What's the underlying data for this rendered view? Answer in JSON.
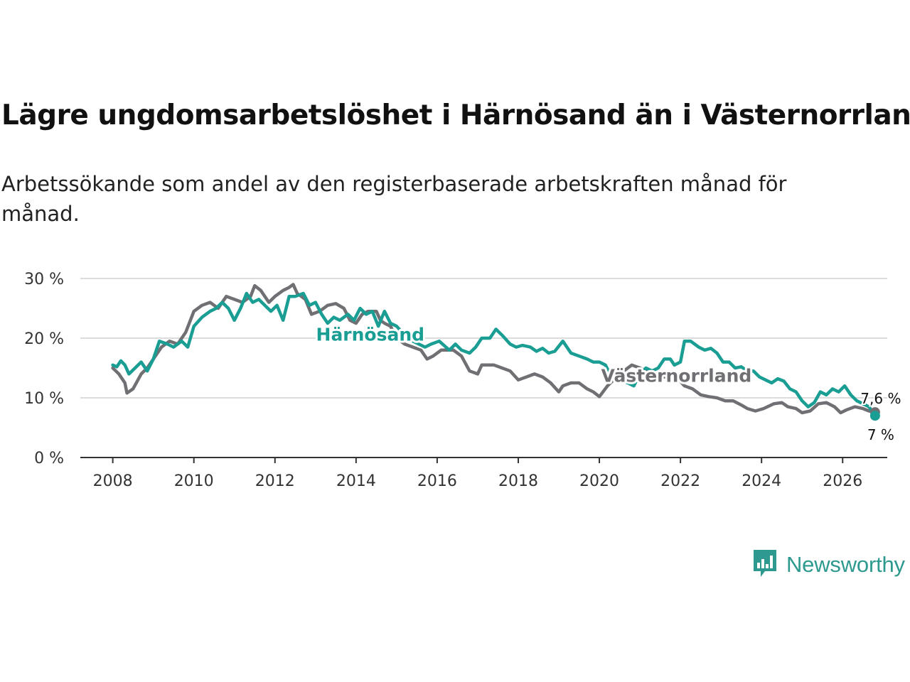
{
  "chart_data": {
    "type": "line",
    "title": "Lägre ungdomsarbetslöshet i Härnösand än i Västernorrland",
    "subtitle": "Arbetssökande som andel av den registerbaserade arbetskraften månad för månad.",
    "y_ticks": [
      "30 %",
      "20 %",
      "10 %",
      "0 %"
    ],
    "y_tick_values": [
      30,
      20,
      10,
      0
    ],
    "x_ticks": [
      "2008",
      "2010",
      "2012",
      "2014",
      "2016",
      "2018",
      "2020",
      "2022",
      "2024",
      "2026"
    ],
    "x_tick_values": [
      2008,
      2010,
      2012,
      2014,
      2016,
      2018,
      2020,
      2022,
      2024,
      2026
    ],
    "xlim": [
      2007.2,
      2027.1
    ],
    "ylim": [
      0,
      30
    ],
    "series": [
      {
        "name": "Västernorrland",
        "color": "#707074",
        "end_label": "7,6 %",
        "points": [
          [
            2008.0,
            15.0
          ],
          [
            2008.15,
            14.0
          ],
          [
            2008.3,
            12.5
          ],
          [
            2008.35,
            10.8
          ],
          [
            2008.5,
            11.5
          ],
          [
            2008.7,
            14.0
          ],
          [
            2008.85,
            15.0
          ],
          [
            2009.0,
            16.5
          ],
          [
            2009.2,
            18.5
          ],
          [
            2009.4,
            19.5
          ],
          [
            2009.6,
            19.0
          ],
          [
            2009.8,
            21.0
          ],
          [
            2010.0,
            24.5
          ],
          [
            2010.2,
            25.5
          ],
          [
            2010.4,
            26.0
          ],
          [
            2010.6,
            25.0
          ],
          [
            2010.8,
            27.0
          ],
          [
            2011.0,
            26.5
          ],
          [
            2011.2,
            26.0
          ],
          [
            2011.4,
            27.0
          ],
          [
            2011.5,
            28.8
          ],
          [
            2011.65,
            28.0
          ],
          [
            2011.85,
            26.0
          ],
          [
            2012.0,
            27.0
          ],
          [
            2012.2,
            28.0
          ],
          [
            2012.35,
            28.5
          ],
          [
            2012.45,
            29.0
          ],
          [
            2012.55,
            27.5
          ],
          [
            2012.75,
            26.5
          ],
          [
            2012.9,
            24.0
          ],
          [
            2013.1,
            24.5
          ],
          [
            2013.3,
            25.5
          ],
          [
            2013.5,
            25.8
          ],
          [
            2013.7,
            25.0
          ],
          [
            2013.85,
            23.0
          ],
          [
            2014.0,
            22.5
          ],
          [
            2014.15,
            24.0
          ],
          [
            2014.3,
            24.5
          ],
          [
            2014.5,
            24.5
          ],
          [
            2014.6,
            23.0
          ],
          [
            2014.7,
            22.5
          ],
          [
            2014.85,
            22.0
          ],
          [
            2015.0,
            20.0
          ],
          [
            2015.2,
            19.0
          ],
          [
            2015.4,
            18.5
          ],
          [
            2015.6,
            18.0
          ],
          [
            2015.75,
            16.5
          ],
          [
            2015.9,
            17.0
          ],
          [
            2016.1,
            18.0
          ],
          [
            2016.4,
            18.0
          ],
          [
            2016.6,
            17.0
          ],
          [
            2016.8,
            14.5
          ],
          [
            2017.0,
            14.0
          ],
          [
            2017.1,
            15.5
          ],
          [
            2017.4,
            15.5
          ],
          [
            2017.6,
            15.0
          ],
          [
            2017.8,
            14.5
          ],
          [
            2018.0,
            13.0
          ],
          [
            2018.2,
            13.5
          ],
          [
            2018.4,
            14.0
          ],
          [
            2018.6,
            13.5
          ],
          [
            2018.8,
            12.5
          ],
          [
            2019.0,
            11.0
          ],
          [
            2019.1,
            12.0
          ],
          [
            2019.3,
            12.5
          ],
          [
            2019.5,
            12.5
          ],
          [
            2019.7,
            11.5
          ],
          [
            2019.85,
            11.0
          ],
          [
            2020.0,
            10.2
          ],
          [
            2020.2,
            12.0
          ],
          [
            2020.5,
            14.0
          ],
          [
            2020.8,
            15.5
          ],
          [
            2021.0,
            15.0
          ],
          [
            2021.3,
            14.0
          ],
          [
            2021.6,
            13.5
          ],
          [
            2021.9,
            13.5
          ],
          [
            2022.1,
            12.0
          ],
          [
            2022.3,
            11.5
          ],
          [
            2022.5,
            10.5
          ],
          [
            2022.7,
            10.2
          ],
          [
            2022.9,
            10.0
          ],
          [
            2023.1,
            9.5
          ],
          [
            2023.3,
            9.5
          ],
          [
            2023.5,
            8.8
          ],
          [
            2023.65,
            8.2
          ],
          [
            2023.85,
            7.8
          ],
          [
            2024.05,
            8.2
          ],
          [
            2024.3,
            9.0
          ],
          [
            2024.5,
            9.2
          ],
          [
            2024.65,
            8.5
          ],
          [
            2024.85,
            8.2
          ],
          [
            2025.0,
            7.5
          ],
          [
            2025.2,
            7.8
          ],
          [
            2025.4,
            9.0
          ],
          [
            2025.6,
            9.2
          ],
          [
            2025.8,
            8.5
          ],
          [
            2025.95,
            7.5
          ],
          [
            2026.1,
            8.0
          ],
          [
            2026.3,
            8.5
          ],
          [
            2026.5,
            8.2
          ],
          [
            2026.65,
            7.8
          ],
          [
            2026.8,
            7.6
          ]
        ]
      },
      {
        "name": "Härnösand",
        "color": "#1a9e94",
        "end_label": "7 %",
        "points": [
          [
            2008.0,
            15.5
          ],
          [
            2008.1,
            15.2
          ],
          [
            2008.2,
            16.2
          ],
          [
            2008.3,
            15.5
          ],
          [
            2008.4,
            14.0
          ],
          [
            2008.55,
            15.0
          ],
          [
            2008.7,
            16.0
          ],
          [
            2008.85,
            14.5
          ],
          [
            2009.0,
            16.5
          ],
          [
            2009.15,
            19.5
          ],
          [
            2009.35,
            19.0
          ],
          [
            2009.5,
            18.5
          ],
          [
            2009.7,
            19.5
          ],
          [
            2009.85,
            18.5
          ],
          [
            2010.0,
            22.0
          ],
          [
            2010.2,
            23.5
          ],
          [
            2010.4,
            24.5
          ],
          [
            2010.55,
            25.0
          ],
          [
            2010.7,
            26.0
          ],
          [
            2010.85,
            25.0
          ],
          [
            2011.0,
            23.0
          ],
          [
            2011.15,
            25.0
          ],
          [
            2011.3,
            27.5
          ],
          [
            2011.45,
            26.0
          ],
          [
            2011.6,
            26.5
          ],
          [
            2011.75,
            25.5
          ],
          [
            2011.9,
            24.5
          ],
          [
            2012.05,
            25.5
          ],
          [
            2012.2,
            23.0
          ],
          [
            2012.35,
            27.0
          ],
          [
            2012.5,
            27.0
          ],
          [
            2012.7,
            27.5
          ],
          [
            2012.85,
            25.5
          ],
          [
            2013.0,
            26.0
          ],
          [
            2013.15,
            24.0
          ],
          [
            2013.3,
            22.5
          ],
          [
            2013.45,
            23.5
          ],
          [
            2013.6,
            23.0
          ],
          [
            2013.8,
            24.0
          ],
          [
            2013.95,
            23.0
          ],
          [
            2014.1,
            25.0
          ],
          [
            2014.25,
            24.0
          ],
          [
            2014.4,
            24.5
          ],
          [
            2014.55,
            22.0
          ],
          [
            2014.7,
            24.5
          ],
          [
            2014.85,
            22.5
          ],
          [
            2015.0,
            22.0
          ],
          [
            2015.2,
            20.5
          ],
          [
            2015.4,
            19.5
          ],
          [
            2015.55,
            19.0
          ],
          [
            2015.7,
            18.5
          ],
          [
            2015.85,
            19.0
          ],
          [
            2016.05,
            19.5
          ],
          [
            2016.3,
            18.0
          ],
          [
            2016.45,
            19.0
          ],
          [
            2016.6,
            18.0
          ],
          [
            2016.8,
            17.5
          ],
          [
            2016.95,
            18.5
          ],
          [
            2017.1,
            20.0
          ],
          [
            2017.3,
            20.0
          ],
          [
            2017.45,
            21.5
          ],
          [
            2017.6,
            20.5
          ],
          [
            2017.8,
            19.0
          ],
          [
            2017.95,
            18.5
          ],
          [
            2018.1,
            18.8
          ],
          [
            2018.3,
            18.5
          ],
          [
            2018.45,
            17.8
          ],
          [
            2018.6,
            18.3
          ],
          [
            2018.75,
            17.5
          ],
          [
            2018.9,
            17.8
          ],
          [
            2019.1,
            19.5
          ],
          [
            2019.3,
            17.5
          ],
          [
            2019.5,
            17.0
          ],
          [
            2019.7,
            16.5
          ],
          [
            2019.85,
            16.0
          ],
          [
            2020.0,
            16.0
          ],
          [
            2020.15,
            15.5
          ],
          [
            2020.3,
            13.5
          ],
          [
            2020.5,
            13.0
          ],
          [
            2020.7,
            12.5
          ],
          [
            2020.85,
            12.0
          ],
          [
            2021.0,
            14.0
          ],
          [
            2021.15,
            15.0
          ],
          [
            2021.3,
            14.5
          ],
          [
            2021.45,
            15.0
          ],
          [
            2021.6,
            16.5
          ],
          [
            2021.75,
            16.5
          ],
          [
            2021.85,
            15.5
          ],
          [
            2022.0,
            16.0
          ],
          [
            2022.1,
            19.5
          ],
          [
            2022.25,
            19.5
          ],
          [
            2022.45,
            18.5
          ],
          [
            2022.6,
            18.0
          ],
          [
            2022.75,
            18.3
          ],
          [
            2022.9,
            17.5
          ],
          [
            2023.05,
            16.0
          ],
          [
            2023.2,
            16.0
          ],
          [
            2023.35,
            15.0
          ],
          [
            2023.5,
            15.2
          ],
          [
            2023.65,
            14.5
          ],
          [
            2023.8,
            14.5
          ],
          [
            2023.95,
            13.5
          ],
          [
            2024.1,
            13.0
          ],
          [
            2024.25,
            12.5
          ],
          [
            2024.4,
            13.2
          ],
          [
            2024.55,
            12.8
          ],
          [
            2024.7,
            11.5
          ],
          [
            2024.85,
            11.0
          ],
          [
            2025.0,
            9.5
          ],
          [
            2025.15,
            8.5
          ],
          [
            2025.3,
            9.2
          ],
          [
            2025.45,
            11.0
          ],
          [
            2025.6,
            10.5
          ],
          [
            2025.75,
            11.5
          ],
          [
            2025.9,
            11.0
          ],
          [
            2026.05,
            12.0
          ],
          [
            2026.2,
            10.5
          ],
          [
            2026.35,
            9.5
          ],
          [
            2026.5,
            9.0
          ],
          [
            2026.65,
            8.5
          ],
          [
            2026.8,
            7.0
          ]
        ]
      }
    ]
  },
  "brand": {
    "name": "Newsworthy",
    "color": "#2e9a8f"
  }
}
